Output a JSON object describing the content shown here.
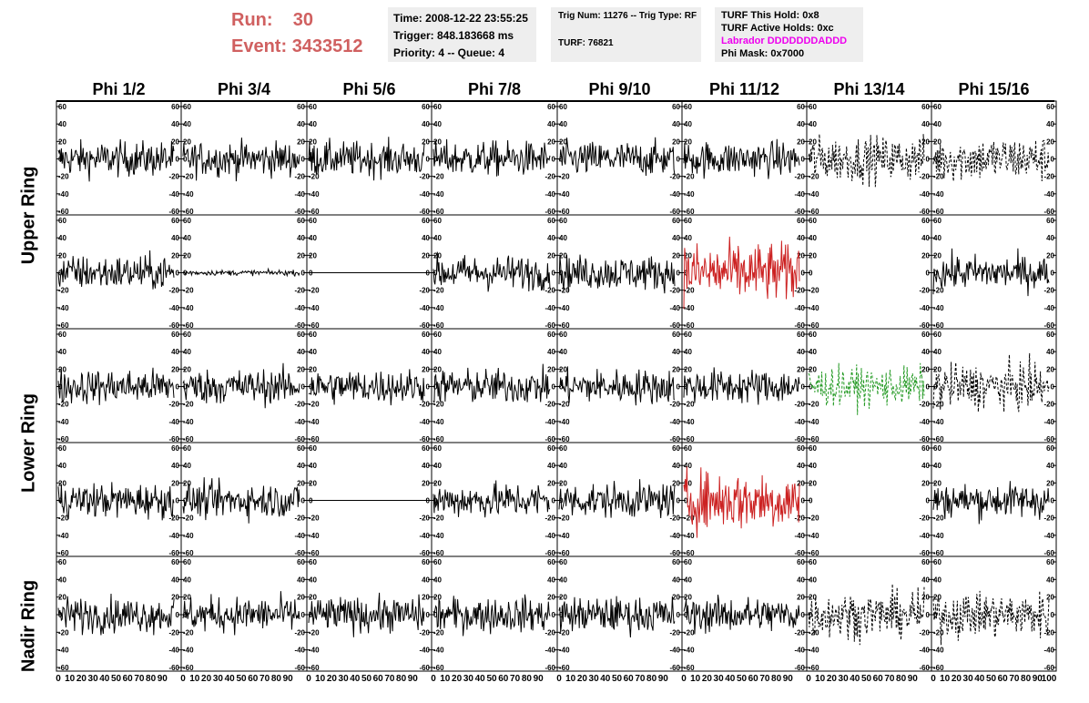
{
  "header": {
    "run_label": "Run:",
    "run_value": "30",
    "event_label": "Event:",
    "event_value": "3433512",
    "time": "Time: 2008-12-22 23:55:25",
    "trigger": "Trigger: 848.183668 ms",
    "priority": "Priority: 4 -- Queue: 4",
    "trig_num": "Trig Num: 11276 -- Trig Type: RF",
    "turf": "TURF: 76821",
    "turf_hold": "TURF This Hold: 0x8",
    "turf_active": "TURF Active Holds: 0xc",
    "labrador": "Labrador DDDDDDDADDD",
    "phi_mask": "Phi Mask: 0x7000",
    "labrador_color": "#ee00ee"
  },
  "chart_data": {
    "type": "line",
    "columns": [
      "Phi 1/2",
      "Phi 3/4",
      "Phi 5/6",
      "Phi 7/8",
      "Phi 9/10",
      "Phi 11/12",
      "Phi 13/14",
      "Phi 15/16"
    ],
    "row_labels": [
      "Upper Ring",
      "Lower Ring",
      "Nadir Ring"
    ],
    "ylim": [
      -60,
      60
    ],
    "xlim": [
      0,
      100
    ],
    "y_ticks": [
      "60",
      "40",
      "20",
      "0",
      "-20",
      "-40",
      "-60"
    ],
    "x_ticks": [
      "0",
      "10",
      "20",
      "30",
      "40",
      "50",
      "60",
      "70",
      "80",
      "90",
      "100"
    ],
    "series_colors": {
      "normal": "#000000",
      "red": "#cc2222",
      "green": "#229922"
    },
    "panels": [
      [
        "normal",
        "normal",
        "normal",
        "normal",
        "normal",
        "normal",
        "dashed",
        "dashed"
      ],
      [
        "normal",
        "small",
        "flat",
        "normal",
        "normal",
        "red",
        "empty",
        "normal"
      ],
      [
        "normal",
        "normal",
        "normal",
        "normal",
        "normal",
        "normal",
        "green",
        "dashed"
      ],
      [
        "normal",
        "normal",
        "flat",
        "normal",
        "normal",
        "red",
        "empty",
        "normal"
      ],
      [
        "normal",
        "normal",
        "normal",
        "normal",
        "normal",
        "normal",
        "dashed",
        "dashed"
      ]
    ]
  }
}
